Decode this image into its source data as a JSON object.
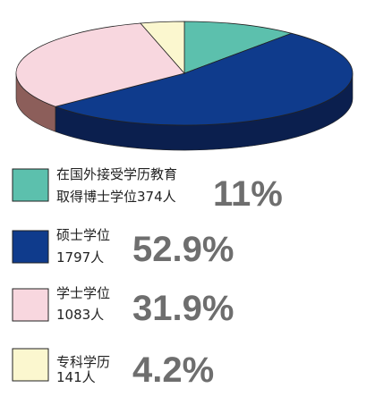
{
  "chart_data": {
    "type": "pie",
    "categories": [
      "在国外接受学历教育",
      "硕士学位",
      "学士学位",
      "专科学历"
    ],
    "sublabels": [
      "取得博士学位374人",
      "1797人",
      "1083人",
      "141人"
    ],
    "values": [
      11,
      52.9,
      31.9,
      4.2
    ],
    "value_labels": [
      "11%",
      "52.9%",
      "31.9%",
      "4.2%"
    ],
    "colors": [
      "#5cc0ad",
      "#0f3b8c",
      "#f8d7df",
      "#fbf7cf"
    ],
    "side_colors": [
      "#3c8a7c",
      "#0b1f4e",
      "#8c5e5a",
      "#b9b48e"
    ]
  }
}
